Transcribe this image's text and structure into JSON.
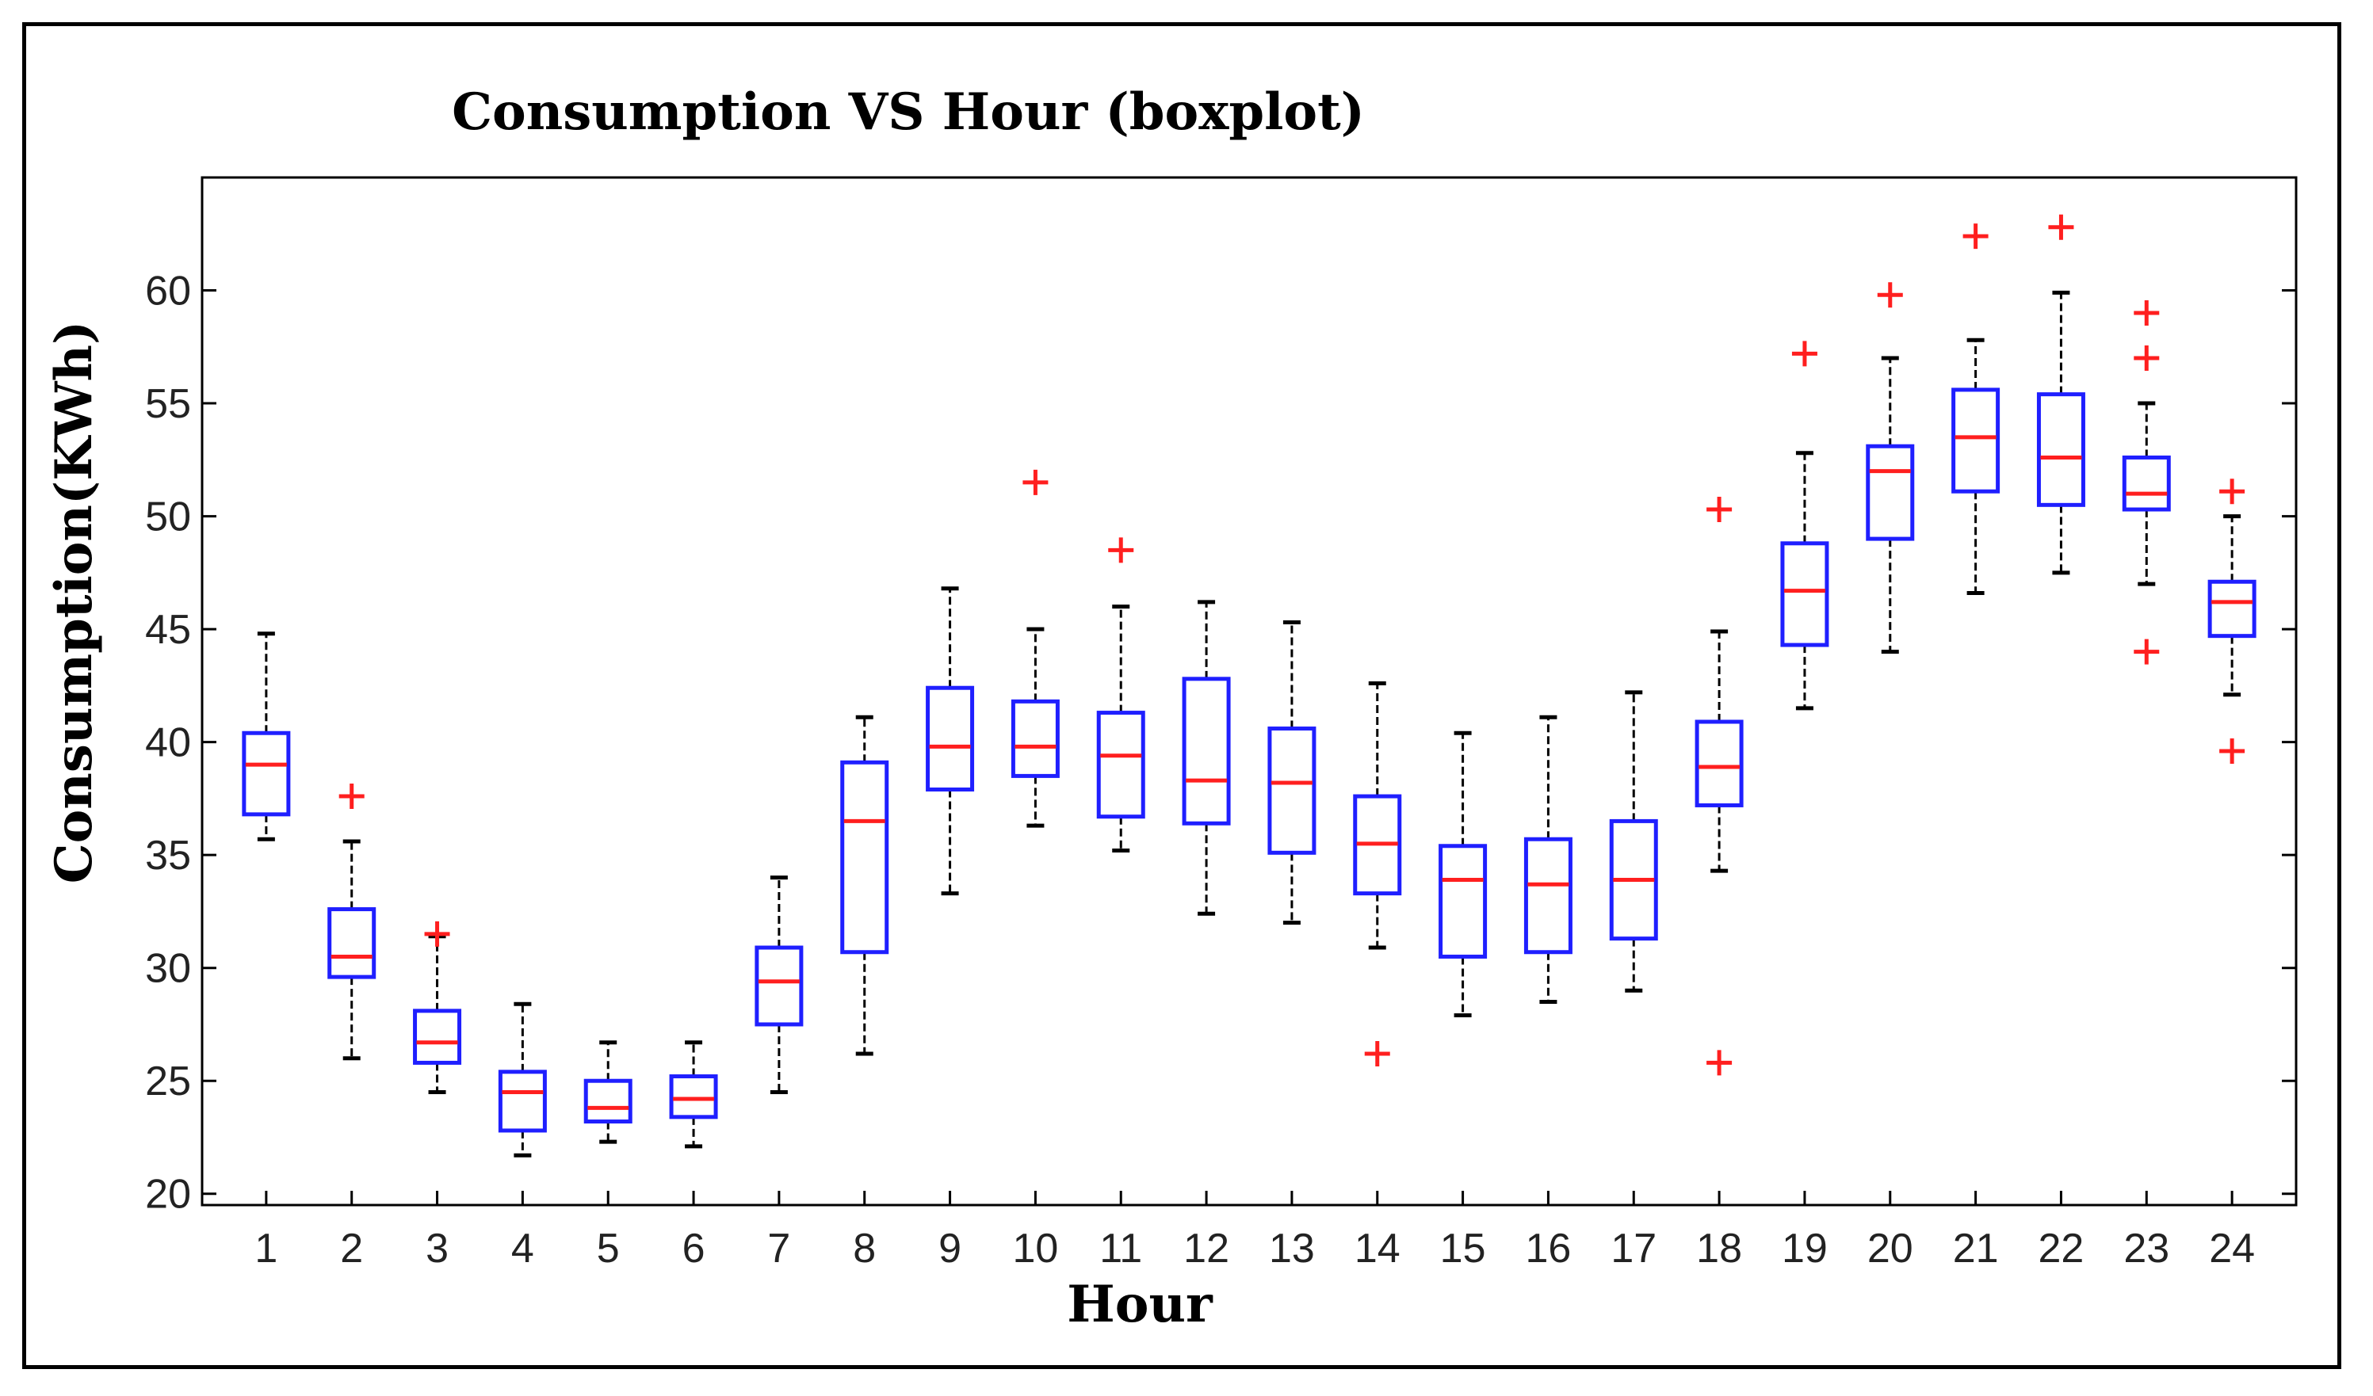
{
  "chart_data": {
    "type": "boxplot",
    "title": "Consumption VS Hour (boxplot)",
    "xlabel": "Hour",
    "ylabel": "Consumption(KWh)",
    "ylim": [
      19.5,
      65
    ],
    "yticks": [
      20,
      25,
      30,
      35,
      40,
      45,
      50,
      55,
      60
    ],
    "grid": false,
    "colors": {
      "box": "#1f1fff",
      "median": "#ff1f1f",
      "whisker": "#000000",
      "outlier": "#ff1f1f",
      "axis": "#000000"
    },
    "categories": [
      "1",
      "2",
      "3",
      "4",
      "5",
      "6",
      "7",
      "8",
      "9",
      "10",
      "11",
      "12",
      "13",
      "14",
      "15",
      "16",
      "17",
      "18",
      "19",
      "20",
      "21",
      "22",
      "23",
      "24"
    ],
    "boxes": [
      {
        "low": 35.7,
        "q1": 36.8,
        "median": 39.0,
        "q3": 40.4,
        "high": 44.8,
        "outliers": []
      },
      {
        "low": 26.0,
        "q1": 29.6,
        "median": 30.5,
        "q3": 32.6,
        "high": 35.6,
        "outliers": [
          37.6
        ]
      },
      {
        "low": 24.5,
        "q1": 25.8,
        "median": 26.7,
        "q3": 28.1,
        "high": 31.4,
        "outliers": [
          31.5
        ]
      },
      {
        "low": 21.7,
        "q1": 22.8,
        "median": 24.5,
        "q3": 25.4,
        "high": 28.4,
        "outliers": []
      },
      {
        "low": 22.3,
        "q1": 23.2,
        "median": 23.8,
        "q3": 25.0,
        "high": 26.7,
        "outliers": []
      },
      {
        "low": 22.1,
        "q1": 23.4,
        "median": 24.2,
        "q3": 25.2,
        "high": 26.7,
        "outliers": []
      },
      {
        "low": 24.5,
        "q1": 27.5,
        "median": 29.4,
        "q3": 30.9,
        "high": 34.0,
        "outliers": []
      },
      {
        "low": 26.2,
        "q1": 30.7,
        "median": 36.5,
        "q3": 39.1,
        "high": 41.1,
        "outliers": []
      },
      {
        "low": 33.3,
        "q1": 37.9,
        "median": 39.8,
        "q3": 42.4,
        "high": 46.8,
        "outliers": []
      },
      {
        "low": 36.3,
        "q1": 38.5,
        "median": 39.8,
        "q3": 41.8,
        "high": 45.0,
        "outliers": [
          51.5
        ]
      },
      {
        "low": 35.2,
        "q1": 36.7,
        "median": 39.4,
        "q3": 41.3,
        "high": 46.0,
        "outliers": [
          48.5
        ]
      },
      {
        "low": 32.4,
        "q1": 36.4,
        "median": 38.3,
        "q3": 42.8,
        "high": 46.2,
        "outliers": []
      },
      {
        "low": 32.0,
        "q1": 35.1,
        "median": 38.2,
        "q3": 40.6,
        "high": 45.3,
        "outliers": []
      },
      {
        "low": 30.9,
        "q1": 33.3,
        "median": 35.5,
        "q3": 37.6,
        "high": 42.6,
        "outliers": [
          26.2
        ]
      },
      {
        "low": 27.9,
        "q1": 30.5,
        "median": 33.9,
        "q3": 35.4,
        "high": 40.4,
        "outliers": []
      },
      {
        "low": 28.5,
        "q1": 30.7,
        "median": 33.7,
        "q3": 35.7,
        "high": 41.1,
        "outliers": []
      },
      {
        "low": 29.0,
        "q1": 31.3,
        "median": 33.9,
        "q3": 36.5,
        "high": 42.2,
        "outliers": []
      },
      {
        "low": 34.3,
        "q1": 37.2,
        "median": 38.9,
        "q3": 40.9,
        "high": 44.9,
        "outliers": [
          50.3,
          25.8
        ]
      },
      {
        "low": 41.5,
        "q1": 44.3,
        "median": 46.7,
        "q3": 48.8,
        "high": 52.8,
        "outliers": [
          57.2
        ]
      },
      {
        "low": 44.0,
        "q1": 49.0,
        "median": 52.0,
        "q3": 53.1,
        "high": 57.0,
        "outliers": [
          59.8
        ]
      },
      {
        "low": 46.6,
        "q1": 51.1,
        "median": 53.5,
        "q3": 55.6,
        "high": 57.8,
        "outliers": [
          62.4
        ]
      },
      {
        "low": 47.5,
        "q1": 50.5,
        "median": 52.6,
        "q3": 55.4,
        "high": 59.9,
        "outliers": [
          62.8
        ]
      },
      {
        "low": 47.0,
        "q1": 50.3,
        "median": 51.0,
        "q3": 52.6,
        "high": 55.0,
        "outliers": [
          59.0,
          57.0,
          44.0
        ]
      },
      {
        "low": 42.1,
        "q1": 44.7,
        "median": 46.2,
        "q3": 47.1,
        "high": 50.0,
        "outliers": [
          51.1,
          39.6
        ]
      }
    ]
  }
}
